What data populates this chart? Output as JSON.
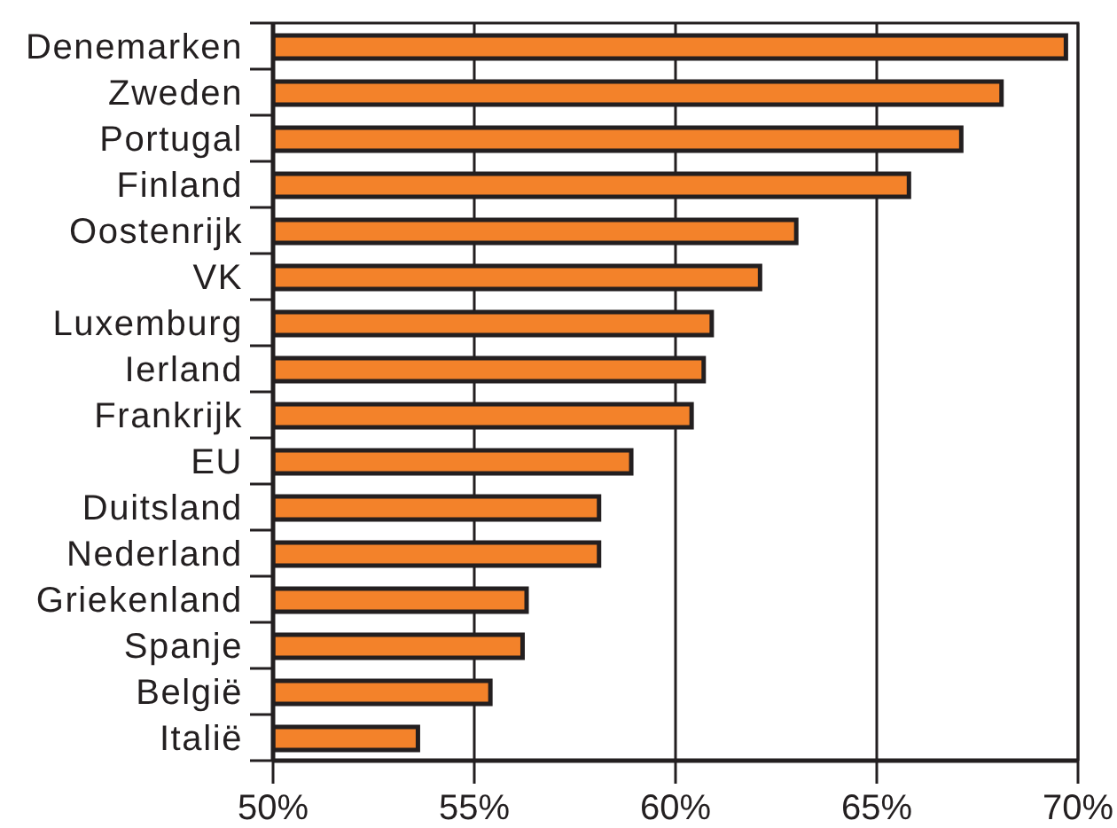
{
  "chart_data": {
    "type": "bar",
    "orientation": "horizontal",
    "categories": [
      "Denemarken",
      "Zweden",
      "Portugal",
      "Finland",
      "Oostenrijk",
      "VK",
      "Luxemburg",
      "Ierland",
      "Frankrijk",
      "EU",
      "Duitsland",
      "Nederland",
      "Griekenland",
      "Spanje",
      "België",
      "Italië"
    ],
    "values": [
      69.7,
      68.1,
      67.1,
      65.8,
      63.0,
      62.1,
      60.9,
      60.7,
      60.4,
      58.9,
      58.1,
      58.1,
      56.3,
      56.2,
      55.4,
      53.6
    ],
    "color": "#f3822a",
    "xlim": [
      50,
      70
    ],
    "xticks": [
      {
        "value": 50,
        "label": "50%"
      },
      {
        "value": 55,
        "label": "55%"
      },
      {
        "value": 60,
        "label": "60%"
      },
      {
        "value": 65,
        "label": "65%"
      },
      {
        "value": 70,
        "label": "70%"
      }
    ],
    "grid": "x"
  }
}
